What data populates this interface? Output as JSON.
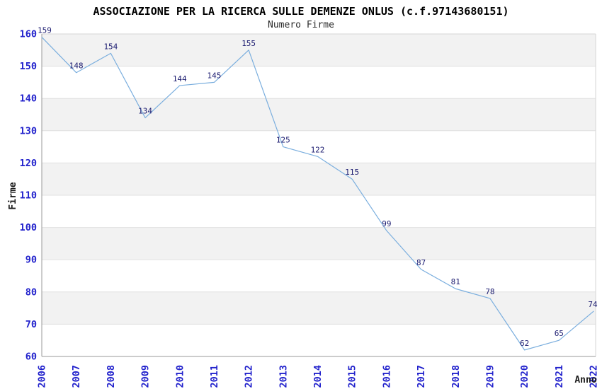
{
  "chart_data": {
    "type": "line",
    "title": "ASSOCIAZIONE PER LA RICERCA SULLE DEMENZE ONLUS (c.f.97143680151)",
    "subtitle": "Numero Firme",
    "xlabel": "Anno",
    "ylabel": "Firme",
    "x": [
      2006,
      2007,
      2008,
      2009,
      2010,
      2011,
      2012,
      2013,
      2014,
      2015,
      2016,
      2017,
      2018,
      2019,
      2020,
      2021,
      2022
    ],
    "values": [
      159,
      148,
      154,
      134,
      144,
      145,
      155,
      125,
      122,
      115,
      99,
      87,
      81,
      78,
      62,
      65,
      74
    ],
    "ylim": [
      60,
      160
    ],
    "ytick_step": 10,
    "yticks": [
      60,
      70,
      80,
      90,
      100,
      110,
      120,
      130,
      140,
      150,
      160
    ],
    "point_labels_visible": true,
    "markers": false,
    "legend": null,
    "grid": "horizontal-alternating-bands",
    "x_tick_rotation_deg": -90,
    "colors": {
      "line": "#7aaede",
      "tick_label": "#2222cc",
      "point_label": "#1b1b70",
      "band": "#f2f2f2",
      "gridline": "#e0e0e0",
      "axis": "#999999",
      "border": "#d6d6d6",
      "title": "#000000",
      "axis_title": "#1a1a1a",
      "background": "#ffffff"
    }
  }
}
